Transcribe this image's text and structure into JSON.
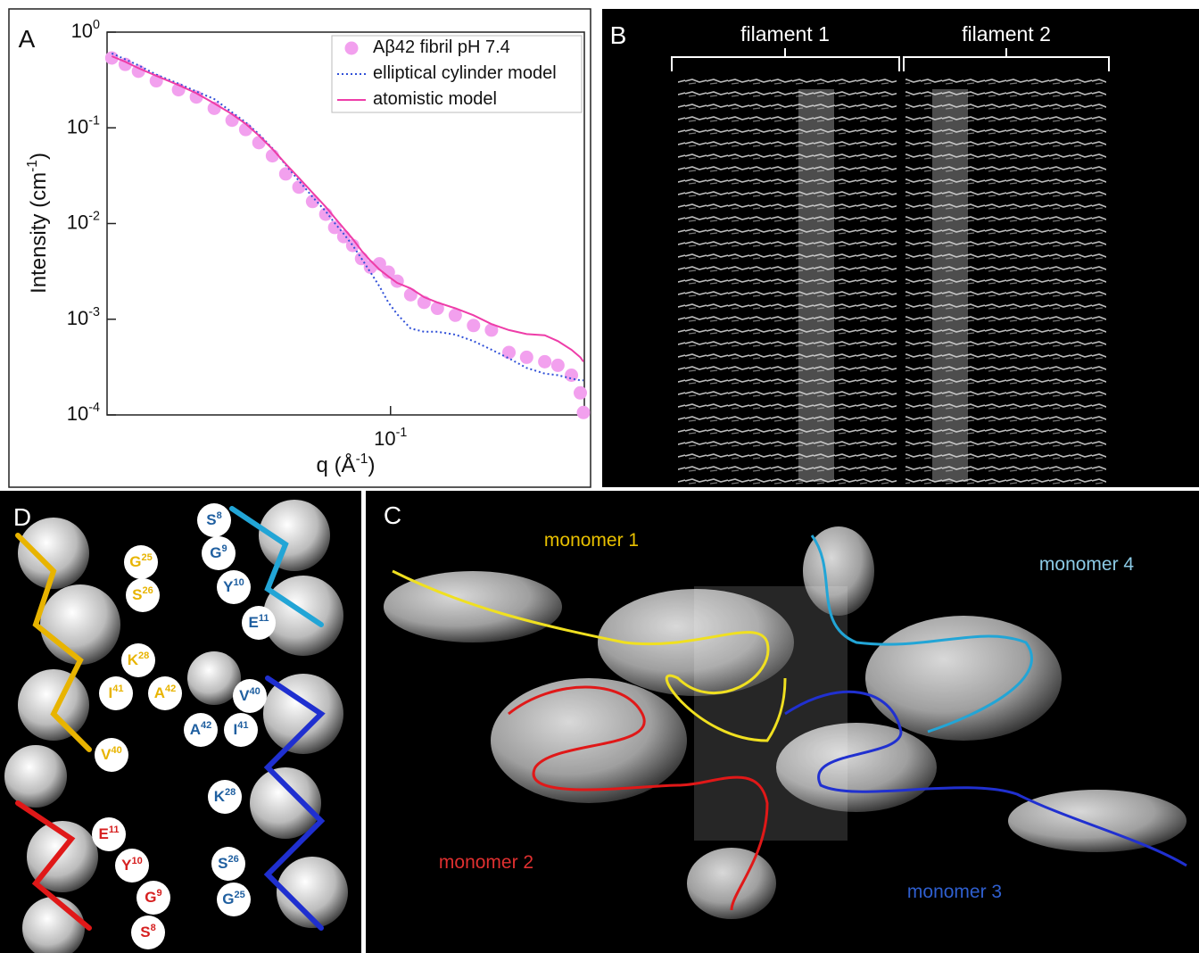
{
  "chart_data": {
    "type": "scatter",
    "xlabel": "q (Å^{-1})",
    "ylabel": "Intensity (cm^{-1})",
    "xscale": "log",
    "yscale": "log",
    "xlim": [
      0.016,
      0.35
    ],
    "ylim": [
      0.0001,
      1
    ],
    "xticks": [
      {
        "value": 0.1,
        "label": "10^{-1}"
      }
    ],
    "yticks": [
      {
        "value": 1,
        "label": "10^{0}"
      },
      {
        "value": 0.1,
        "label": "10^{-1}"
      },
      {
        "value": 0.01,
        "label": "10^{-2}"
      },
      {
        "value": 0.001,
        "label": "10^{-3}"
      },
      {
        "value": 0.0001,
        "label": "10^{-4}"
      }
    ],
    "legend": "upper right",
    "x": [
      0.0165,
      0.018,
      0.0196,
      0.022,
      0.0254,
      0.0285,
      0.032,
      0.0359,
      0.0392,
      0.0427,
      0.0466,
      0.0508,
      0.0553,
      0.0604,
      0.0658,
      0.0697,
      0.0739,
      0.0783,
      0.0829,
      0.0878,
      0.0931,
      0.0986,
      0.1044,
      0.1139,
      0.1242,
      0.1354,
      0.152,
      0.171,
      0.192,
      0.215,
      0.241,
      0.271,
      0.295,
      0.322,
      0.341,
      0.348
    ],
    "series": [
      {
        "name": "Aβ42 fibril pH 7.4",
        "type": "scatter",
        "color": "#f2a0ee",
        "values": [
          0.537,
          0.46,
          0.39,
          0.31,
          0.25,
          0.21,
          0.16,
          0.12,
          0.096,
          0.07,
          0.051,
          0.033,
          0.024,
          0.017,
          0.0125,
          0.0091,
          0.0073,
          0.0059,
          0.0043,
          0.0035,
          0.0038,
          0.0031,
          0.0025,
          0.0018,
          0.0015,
          0.0013,
          0.0011,
          0.00086,
          0.00077,
          0.00045,
          0.0004,
          0.00036,
          0.00033,
          0.00026,
          0.00017,
          0.000106
        ]
      },
      {
        "name": "elliptical cylinder model",
        "type": "line",
        "dash": "dotted",
        "color": "#3050d8",
        "values": [
          0.6,
          0.52,
          0.45,
          0.36,
          0.29,
          0.24,
          0.2,
          0.145,
          0.114,
          0.086,
          0.061,
          0.041,
          0.028,
          0.019,
          0.0134,
          0.0101,
          0.0078,
          0.0059,
          0.0043,
          0.0031,
          0.0022,
          0.0015,
          0.00113,
          0.0008,
          0.00074,
          0.00074,
          0.00069,
          0.00059,
          0.00048,
          0.00039,
          0.00031,
          0.00027,
          0.00026,
          0.00024,
          0.00023,
          0.00023
        ]
      },
      {
        "name": "atomistic model",
        "type": "line",
        "dash": "solid",
        "color": "#ee3da8",
        "values": [
          0.56,
          0.49,
          0.42,
          0.35,
          0.28,
          0.23,
          0.18,
          0.139,
          0.11,
          0.083,
          0.06,
          0.042,
          0.03,
          0.021,
          0.0149,
          0.0115,
          0.0089,
          0.0069,
          0.0052,
          0.0041,
          0.0033,
          0.0028,
          0.0024,
          0.0021,
          0.0017,
          0.0015,
          0.0013,
          0.0011,
          0.00089,
          0.00077,
          0.0007,
          0.00068,
          0.00059,
          0.00048,
          0.0004,
          0.00036
        ]
      }
    ]
  },
  "panel_labels": [
    "A",
    "B",
    "C",
    "D"
  ],
  "filaments": [
    "filament 1",
    "filament 2"
  ],
  "monomers": [
    {
      "label": "monomer 1",
      "color": "#e8c000"
    },
    {
      "label": "monomer 4",
      "color": "#8ccbe6"
    },
    {
      "label": "monomer 2",
      "color": "#e03030"
    },
    {
      "label": "monomer 3",
      "color": "#2f5fd0"
    }
  ],
  "residues": [
    {
      "label": "G^{25}",
      "color": "#e8b400"
    },
    {
      "label": "S^{26}",
      "color": "#e8b400"
    },
    {
      "label": "K^{28}",
      "color": "#e8b400"
    },
    {
      "label": "I^{41}",
      "color": "#e8b400"
    },
    {
      "label": "A^{42}",
      "color": "#e8b400"
    },
    {
      "label": "V^{40}",
      "color": "#e8b400"
    },
    {
      "label": "S^{8}",
      "color": "#1f5fa0"
    },
    {
      "label": "G^{9}",
      "color": "#1f5fa0"
    },
    {
      "label": "Y^{10}",
      "color": "#1f5fa0"
    },
    {
      "label": "E^{11}",
      "color": "#1f5fa0"
    },
    {
      "label": "V^{40}",
      "color": "#1f5fa0"
    },
    {
      "label": "A^{42}",
      "color": "#1f5fa0"
    },
    {
      "label": "I^{41}",
      "color": "#1f5fa0"
    },
    {
      "label": "K^{28}",
      "color": "#1f5fa0"
    },
    {
      "label": "S^{26}",
      "color": "#1f5fa0"
    },
    {
      "label": "G^{25}",
      "color": "#1f5fa0"
    },
    {
      "label": "E^{11}",
      "color": "#d62020"
    },
    {
      "label": "Y^{10}",
      "color": "#d62020"
    },
    {
      "label": "G^{9}",
      "color": "#d62020"
    },
    {
      "label": "S^{8}",
      "color": "#d62020"
    }
  ]
}
